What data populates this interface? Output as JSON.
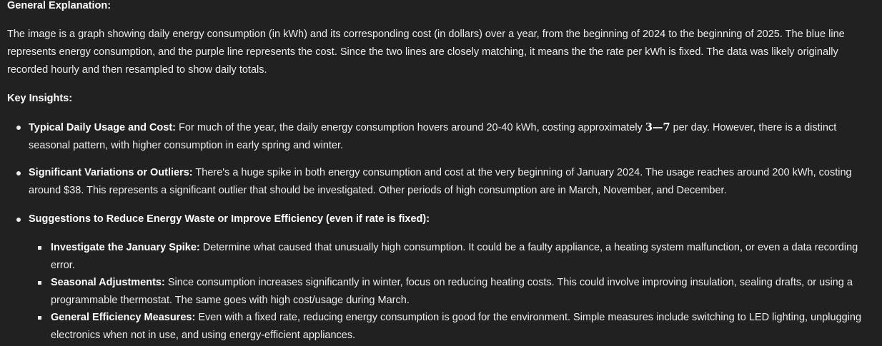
{
  "general": {
    "heading": "General Explanation:",
    "paragraph": "The image is a graph showing daily energy consumption (in kWh) and its corresponding cost (in dollars) over a year, from the beginning of 2024 to the beginning of 2025. The blue line represents energy consumption, and the purple line represents the cost. Since the two lines are closely matching, it means the the rate per kWh is fixed. The data was likely originally recorded hourly and then resampled to show daily totals."
  },
  "insights": {
    "heading": "Key Insights:",
    "bullets": [
      {
        "lead": "Typical Daily Usage and Cost:",
        "text_before": " For much of the year, the daily energy consumption hovers around 20-40 kWh, costing approximately ",
        "math": "3—7",
        "text_after": " per day. However, there is a distinct seasonal pattern, with higher consumption in early spring and winter."
      },
      {
        "lead": "Significant Variations or Outliers:",
        "text": " There's a huge spike in both energy consumption and cost at the very beginning of January 2024. The usage reaches around 200 kWh, costing around $38. This represents a significant outlier that should be investigated. Other periods of high consumption are in March, November, and December."
      },
      {
        "lead": "Suggestions to Reduce Energy Waste or Improve Efficiency (even if rate is fixed):"
      }
    ],
    "sub_bullets": [
      {
        "lead": "Investigate the January Spike:",
        "text": " Determine what caused that unusually high consumption. It could be a faulty appliance, a heating system malfunction, or even a data recording error."
      },
      {
        "lead": "Seasonal Adjustments:",
        "text": " Since consumption increases significantly in winter, focus on reducing heating costs. This could involve improving insulation, sealing drafts, or using a programmable thermostat. The same goes with high cost/usage during March."
      },
      {
        "lead": "General Efficiency Measures:",
        "text": " Even with a fixed rate, reducing energy consumption is good for the environment. Simple measures include switching to LED lighting, unplugging electronics when not in use, and using energy-efficient appliances."
      }
    ]
  }
}
